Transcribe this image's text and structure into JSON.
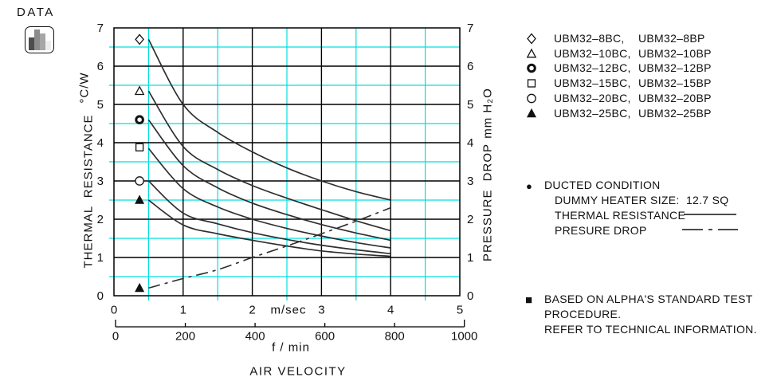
{
  "header": {
    "label": "DATA"
  },
  "data_icon": {
    "bars": [
      {
        "color": "#4d4d4d",
        "height": 16
      },
      {
        "color": "#8c8c8c",
        "height": 26
      },
      {
        "color": "#a6a6a6",
        "height": 21
      },
      {
        "color": "#ededed",
        "height": 12
      }
    ]
  },
  "colors": {
    "grid_minor": "#00e0e0",
    "grid_major": "#000000",
    "curve": "#2e2e2e",
    "marker_stroke": "#111111",
    "text": "#111111"
  },
  "chart_data": {
    "type": "line",
    "title": "",
    "x_axis": {
      "unit_primary": "m/sec",
      "ticks_primary": [
        0,
        1,
        2,
        3,
        4,
        5
      ],
      "range_primary": [
        0,
        5
      ],
      "unit_secondary": "f / min",
      "ticks_secondary": [
        0,
        200,
        400,
        600,
        800,
        1000
      ],
      "range_secondary": [
        0,
        1000
      ],
      "title": "AIR VELOCITY"
    },
    "y_axis_left": {
      "title": "THERMAL RESISTANCE",
      "unit": "°C/W",
      "ticks": [
        7,
        6,
        5,
        4,
        3,
        2,
        1,
        0
      ],
      "range": [
        0,
        7
      ]
    },
    "y_axis_right": {
      "title": "PRESSURE DROP",
      "unit": "mm H₂O",
      "ticks": [
        7,
        6,
        5,
        4,
        3,
        2,
        1,
        0
      ],
      "range": [
        0,
        7
      ]
    },
    "grid": {
      "major_step": 1,
      "minor_step": 0.5,
      "minor_on": true
    },
    "x_samples": [
      0.5,
      1.0,
      1.5,
      2.0,
      2.5,
      3.0,
      3.5,
      4.0
    ],
    "series": [
      {
        "name": "UBM32-8BC / UBM32-8BP",
        "marker": "diamond",
        "marker_point": {
          "x": 0.37,
          "y": 6.7
        },
        "values": [
          6.7,
          5.0,
          4.27,
          3.76,
          3.34,
          3.0,
          2.72,
          2.5
        ]
      },
      {
        "name": "UBM32-10BC / UBM32-10BP",
        "marker": "triangle",
        "marker_point": {
          "x": 0.37,
          "y": 5.35
        },
        "values": [
          5.35,
          3.9,
          3.3,
          2.88,
          2.55,
          2.25,
          1.96,
          1.7
        ]
      },
      {
        "name": "UBM32-12BC / UBM32-12BP",
        "marker": "circle-bold",
        "marker_point": {
          "x": 0.37,
          "y": 4.6
        },
        "values": [
          4.6,
          3.4,
          2.82,
          2.42,
          2.12,
          1.86,
          1.64,
          1.45
        ]
      },
      {
        "name": "UBM32-15BC / UBM32-15BP",
        "marker": "square",
        "marker_point": {
          "x": 0.37,
          "y": 3.88
        },
        "values": [
          3.85,
          2.8,
          2.32,
          2.0,
          1.76,
          1.56,
          1.39,
          1.25
        ]
      },
      {
        "name": "UBM32-20BC / UBM32-20BP",
        "marker": "circle",
        "marker_point": {
          "x": 0.37,
          "y": 3.0
        },
        "values": [
          3.0,
          2.16,
          1.88,
          1.65,
          1.47,
          1.32,
          1.2,
          1.1
        ]
      },
      {
        "name": "UBM32-25BC / UBM32-25BP",
        "marker": "triangle-filled",
        "marker_point": {
          "x": 0.37,
          "y": 2.5
        },
        "values": [
          2.5,
          1.85,
          1.62,
          1.45,
          1.3,
          1.17,
          1.09,
          1.03
        ]
      }
    ],
    "pressure_series": {
      "name": "PRESURE DROP",
      "style": "dash-dot",
      "marker": "triangle-filled",
      "marker_point": {
        "x": 0.37,
        "y": 0.2
      },
      "values": [
        0.2,
        0.45,
        0.68,
        1.0,
        1.3,
        1.62,
        1.95,
        2.3
      ]
    }
  },
  "legend": {
    "entries": [
      {
        "symbol": "diamond",
        "bc": "UBM32–8BC,",
        "bp": "UBM32–8BP"
      },
      {
        "symbol": "triangle",
        "bc": "UBM32–10BC,",
        "bp": "UBM32–10BP"
      },
      {
        "symbol": "circle-bold",
        "bc": "UBM32–12BC,",
        "bp": "UBM32–12BP"
      },
      {
        "symbol": "square",
        "bc": "UBM32–15BC,",
        "bp": "UBM32–15BP"
      },
      {
        "symbol": "circle",
        "bc": "UBM32–20BC,",
        "bp": "UBM32–20BP"
      },
      {
        "symbol": "triangle-filled",
        "bc": "UBM32–25BC,",
        "bp": "UBM32–25BP"
      }
    ]
  },
  "condition_notes": {
    "bullet": "●",
    "title": "DUCTED CONDITION",
    "heater": "DUMMY HEATER SIZE:  12.7 SQ",
    "thermal_label": "THERMAL RESISTANCE",
    "pressure_label": "PRESURE DROP"
  },
  "footer_notes": {
    "bullet": "■",
    "line1": "BASED ON ALPHA'S STANDARD TEST",
    "line2": "PROCEDURE.",
    "line3": "REFER TO TECHNICAL INFORMATION."
  }
}
